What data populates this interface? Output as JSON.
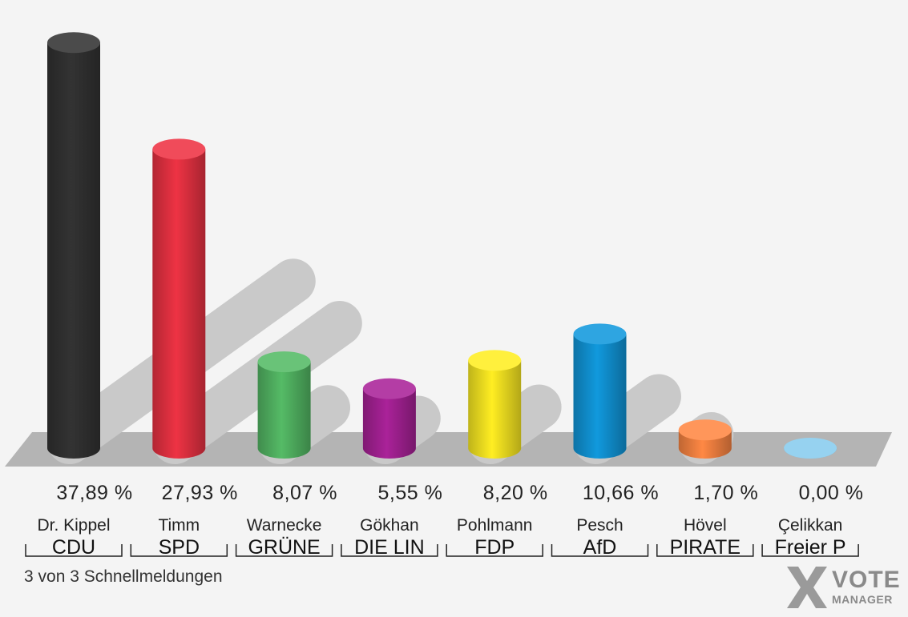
{
  "chart_data": {
    "type": "bar",
    "categories": [
      "CDU",
      "SPD",
      "GRÜNE",
      "DIE LIN",
      "FDP",
      "AfD",
      "PIRATE",
      "Freier P"
    ],
    "candidates": [
      "Dr. Kippel",
      "Timm",
      "Warnecke",
      "Gökhan",
      "Pohlmann",
      "Pesch",
      "Hövel",
      "Çelikkan"
    ],
    "value_labels": [
      "37,89 %",
      "27,93 %",
      "8,07 %",
      "5,55 %",
      "8,20 %",
      "10,66 %",
      "1,70 %",
      "0,00 %"
    ],
    "values": [
      37.89,
      27.93,
      8.07,
      5.55,
      8.2,
      10.66,
      1.7,
      0.0
    ],
    "colors": [
      "#333333",
      "#ee3344",
      "#55bb66",
      "#aa2299",
      "#ffee22",
      "#1199dd",
      "#ff8844",
      "#88ccee"
    ],
    "ylim": [
      0,
      40
    ],
    "grid": false,
    "legend": "none"
  },
  "footer": {
    "note": "3 von 3 Schnellmeldungen"
  },
  "logo": {
    "line1": "VOTE",
    "line2": "MANAGER"
  }
}
